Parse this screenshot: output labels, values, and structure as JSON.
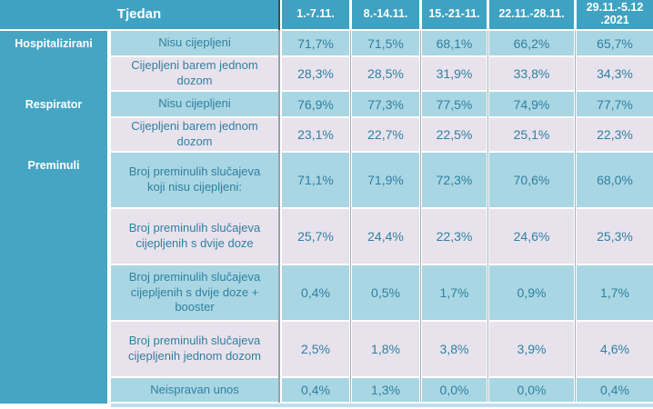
{
  "accent_colors": {
    "teal_header": "#3FA2C2",
    "teal_sidebar": "#45A5C3",
    "row_blue": "#A9D6E3",
    "row_lavender": "#E8E2EC",
    "text_teal": "#2E80A1"
  },
  "table": {
    "header": {
      "corner": "Tjedan",
      "weeks": [
        "1.-7.11.",
        "8.-14.11.",
        "15.-21-11.",
        "22.11.-28.11.",
        "29.11.-5.12\n.2021"
      ]
    },
    "sections": [
      "Hospitalizirani",
      "Respirator",
      "Preminuli"
    ],
    "rows": [
      {
        "category": "Nisu cijepljeni",
        "values": [
          "71,7%",
          "71,5%",
          "68,1%",
          "66,2%",
          "65,7%"
        ]
      },
      {
        "category": "Cijepljeni barem jednom dozom",
        "values": [
          "28,3%",
          "28,5%",
          "31,9%",
          "33,8%",
          "34,3%"
        ]
      },
      {
        "category": "Nisu cijepljeni",
        "values": [
          "76,9%",
          "77,3%",
          "77,5%",
          "74,9%",
          "77,7%"
        ]
      },
      {
        "category": "Cijepljeni barem jednom dozom",
        "values": [
          "23,1%",
          "22,7%",
          "22,5%",
          "25,1%",
          "22,3%"
        ]
      },
      {
        "category": "Broj preminulih slučajeva koji nisu cijepljeni:",
        "values": [
          "71,1%",
          "71,9%",
          "72,3%",
          "70,6%",
          "68,0%"
        ]
      },
      {
        "category": "Broj preminulih slučajeva cijepljenih s dvije doze",
        "values": [
          "25,7%",
          "24,4%",
          "22,3%",
          "24,6%",
          "25,3%"
        ]
      },
      {
        "category": "Broj preminulih slučajeva cijepljenih s dvije doze + booster",
        "values": [
          "0,4%",
          "0,5%",
          "1,7%",
          "0,9%",
          "1,7%"
        ]
      },
      {
        "category": "Broj preminulih slučajeva cijepljenih jednom dozom",
        "values": [
          "2,5%",
          "1,8%",
          "3,8%",
          "3,9%",
          "4,6%"
        ]
      },
      {
        "category": "Neispravan unos",
        "values": [
          "0,4%",
          "1,3%",
          "0,0%",
          "0,0%",
          "0,4%"
        ]
      }
    ]
  },
  "chart_data": {
    "type": "table",
    "title": "Udio cijepljenih/necijepljenih po tjednima (Tjedan)",
    "columns": [
      "Tjedan",
      "1.-7.11.",
      "8.-14.11.",
      "15.-21-11.",
      "22.11.-28.11.",
      "29.11.-5.12.2021"
    ],
    "row_groups": [
      {
        "group": "Hospitalizirani",
        "rows": [
          {
            "label": "Nisu cijepljeni",
            "values_pct": [
              71.7,
              71.5,
              68.1,
              66.2,
              65.7
            ]
          },
          {
            "label": "Cijepljeni barem jednom dozom",
            "values_pct": [
              28.3,
              28.5,
              31.9,
              33.8,
              34.3
            ]
          }
        ]
      },
      {
        "group": "Respirator",
        "rows": [
          {
            "label": "Nisu cijepljeni",
            "values_pct": [
              76.9,
              77.3,
              77.5,
              74.9,
              77.7
            ]
          },
          {
            "label": "Cijepljeni barem jednom dozom",
            "values_pct": [
              23.1,
              22.7,
              22.5,
              25.1,
              22.3
            ]
          }
        ]
      },
      {
        "group": "Preminuli",
        "rows": [
          {
            "label": "Broj preminulih slučajeva koji nisu cijepljeni:",
            "values_pct": [
              71.1,
              71.9,
              72.3,
              70.6,
              68.0
            ]
          },
          {
            "label": "Broj preminulih slučajeva cijepljenih s dvije doze",
            "values_pct": [
              25.7,
              24.4,
              22.3,
              24.6,
              25.3
            ]
          },
          {
            "label": "Broj preminulih slučajeva cijepljenih s dvije doze + booster",
            "values_pct": [
              0.4,
              0.5,
              1.7,
              0.9,
              1.7
            ]
          },
          {
            "label": "Broj preminulih slučajeva cijepljenih jednom dozom",
            "values_pct": [
              2.5,
              1.8,
              3.8,
              3.9,
              4.6
            ]
          },
          {
            "label": "Neispravan unos",
            "values_pct": [
              0.4,
              1.3,
              0.0,
              0.0,
              0.4
            ]
          }
        ]
      }
    ]
  }
}
